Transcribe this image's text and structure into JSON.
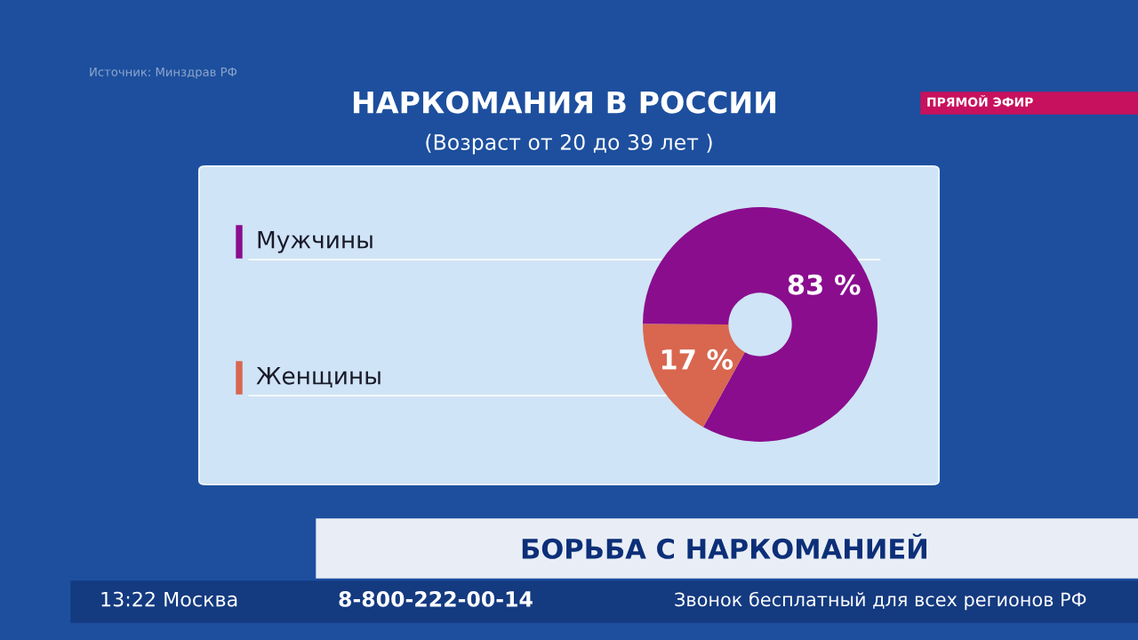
{
  "chart_data": {
    "type": "donut",
    "title": "НАРКОМАНИЯ В РОССИИ",
    "subtitle": "(Возраст от 20 до 39 лет )",
    "categories": [
      "Мужчины",
      "Женщины"
    ],
    "values": [
      83,
      17
    ],
    "colors": [
      "#8a0d8e",
      "#d9664f"
    ],
    "value_labels": [
      "83 %",
      "17 %"
    ],
    "legend": "left",
    "annotations": [
      "Источник: Минздрав РФ",
      "ПРЯМОЙ ЭФИР",
      "БОРЬБА С НАРКОМАНИЕЙ",
      "13:22 Москва",
      "8-800-222-00-14",
      "Звонок бесплатный для всех регионов РФ"
    ]
  }
}
